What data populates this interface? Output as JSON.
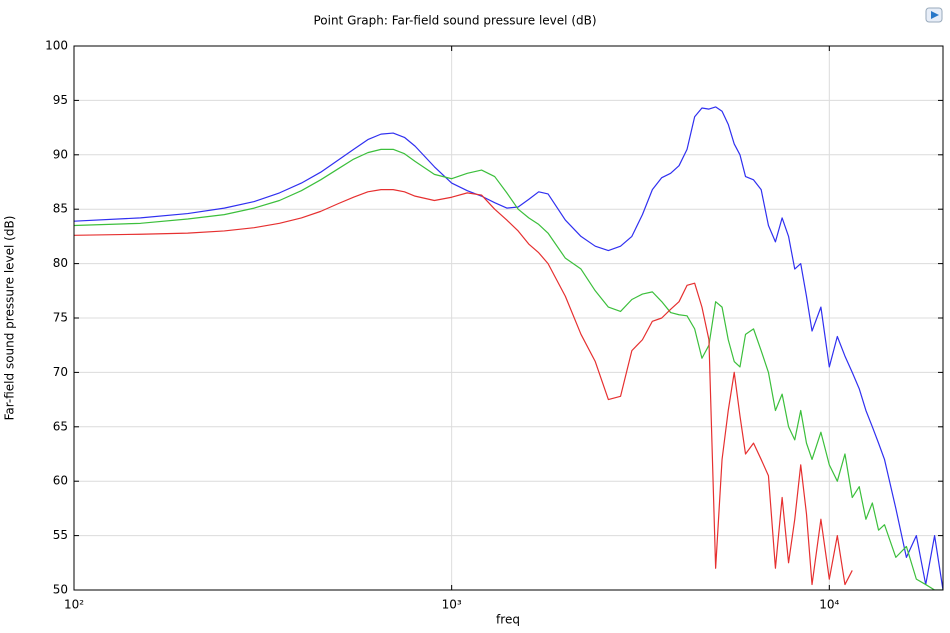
{
  "chart_data": {
    "type": "line",
    "title": "Point Graph: Far-field sound pressure level (dB)",
    "xlabel": "freq",
    "ylabel": "Far-field sound pressure level (dB)",
    "xscale": "log",
    "grid": true,
    "xlim": [
      100,
      20000
    ],
    "ylim": [
      50,
      100
    ],
    "xticks": [
      {
        "value": 100,
        "label": "10²"
      },
      {
        "value": 1000,
        "label": "10³"
      },
      {
        "value": 10000,
        "label": "10⁴"
      }
    ],
    "yticks": [
      50,
      55,
      60,
      65,
      70,
      75,
      80,
      85,
      90,
      95,
      100
    ],
    "x": [
      100,
      150,
      200,
      250,
      300,
      350,
      400,
      450,
      500,
      550,
      600,
      650,
      700,
      750,
      800,
      900,
      1000,
      1100,
      1200,
      1300,
      1400,
      1500,
      1600,
      1700,
      1800,
      2000,
      2200,
      2400,
      2600,
      2800,
      3000,
      3200,
      3400,
      3600,
      3800,
      4000,
      4200,
      4400,
      4600,
      4800,
      5000,
      5200,
      5400,
      5600,
      5800,
      6000,
      6300,
      6600,
      6900,
      7200,
      7500,
      7800,
      8100,
      8400,
      8700,
      9000,
      9500,
      10000,
      10500,
      11000,
      11500,
      12000,
      12500,
      13000,
      13500,
      14000,
      15000,
      16000,
      17000,
      18000,
      19000,
      20000
    ],
    "series": [
      {
        "color": "#3030f0",
        "values": [
          83.9,
          84.2,
          84.6,
          85.1,
          85.7,
          86.5,
          87.4,
          88.4,
          89.5,
          90.5,
          91.4,
          91.9,
          92.0,
          91.6,
          90.8,
          88.9,
          87.4,
          86.7,
          86.2,
          85.6,
          85.1,
          85.2,
          85.9,
          86.6,
          86.4,
          84.0,
          82.5,
          81.6,
          81.2,
          81.6,
          82.5,
          84.5,
          86.8,
          87.9,
          88.3,
          89.0,
          90.5,
          93.5,
          94.3,
          94.2,
          94.4,
          94.0,
          92.8,
          91.0,
          90.0,
          88.0,
          87.7,
          86.8,
          83.5,
          82.0,
          84.2,
          82.5,
          79.5,
          80.0,
          77.0,
          73.8,
          76.0,
          70.5,
          73.3,
          71.5,
          70.0,
          68.5,
          66.5,
          65.0,
          63.5,
          62.0,
          57.5,
          53.0,
          55.0,
          50.5,
          55.0,
          50.0
        ]
      },
      {
        "color": "#3cbf3c",
        "values": [
          83.5,
          83.7,
          84.1,
          84.5,
          85.1,
          85.8,
          86.7,
          87.7,
          88.7,
          89.6,
          90.2,
          90.5,
          90.5,
          90.1,
          89.4,
          88.2,
          87.8,
          88.3,
          88.6,
          88.0,
          86.5,
          85.0,
          84.2,
          83.6,
          82.8,
          80.5,
          79.5,
          77.5,
          76.0,
          75.6,
          76.7,
          77.2,
          77.4,
          76.5,
          75.5,
          75.3,
          75.2,
          74.0,
          71.3,
          72.5,
          76.5,
          76.0,
          73.0,
          71.0,
          70.5,
          73.5,
          74.0,
          72.0,
          70.0,
          66.5,
          68.0,
          65.0,
          63.8,
          66.5,
          63.5,
          62.0,
          64.5,
          61.5,
          60.0,
          62.5,
          58.5,
          59.5,
          56.5,
          58.0,
          55.5,
          56.0,
          53.0,
          54.0,
          51.0,
          50.5,
          50.0,
          50.0
        ]
      },
      {
        "color": "#e63030",
        "values": [
          82.6,
          82.7,
          82.8,
          83.0,
          83.3,
          83.7,
          84.2,
          84.8,
          85.5,
          86.1,
          86.6,
          86.8,
          86.8,
          86.6,
          86.2,
          85.8,
          86.1,
          86.5,
          86.3,
          85.0,
          84.0,
          83.0,
          81.8,
          81.0,
          80.0,
          77.0,
          73.5,
          71.0,
          67.5,
          67.8,
          72.0,
          73.0,
          74.7,
          75.0,
          75.8,
          76.5,
          78.0,
          78.2,
          76.0,
          73.0,
          52.0,
          62.0,
          66.5,
          70.0,
          66.0,
          62.5,
          63.5,
          62.0,
          60.5,
          52.0,
          58.5,
          52.5,
          56.5,
          61.5,
          57.0,
          50.5,
          56.5,
          51.0,
          55.0,
          50.5,
          51.8,
          null,
          null,
          null,
          null,
          null,
          null,
          null,
          null,
          null,
          null,
          null
        ]
      }
    ]
  }
}
